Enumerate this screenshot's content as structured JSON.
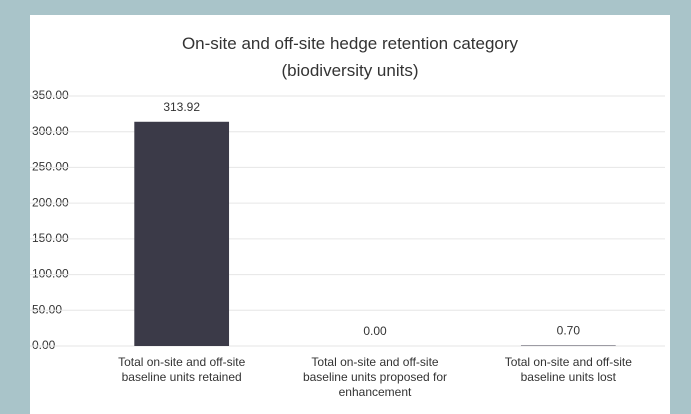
{
  "chart_data": {
    "type": "bar",
    "title": "On-site and off-site hedge retention category (biodiversity units)",
    "categories": [
      "Total on-site and off-site baseline units retained",
      "Total on-site and off-site baseline units proposed for enhancement",
      "Total on-site and off-site baseline units lost"
    ],
    "values": [
      313.92,
      0,
      0.7
    ],
    "value_labels": [
      "313.92",
      "0.00",
      "0.70"
    ],
    "color": "#3b3a48",
    "ylim": [
      0,
      350
    ],
    "yticks": [
      {
        "value": 0,
        "label": "0.00"
      },
      {
        "value": 50,
        "label": "50.00"
      },
      {
        "value": 100,
        "label": "100.00"
      },
      {
        "value": 150,
        "label": "150.00"
      },
      {
        "value": 200,
        "label": "200.00"
      },
      {
        "value": 250,
        "label": "250.00"
      },
      {
        "value": 300,
        "label": "300.00"
      },
      {
        "value": 350,
        "label": "350.00"
      }
    ],
    "grid": true
  }
}
